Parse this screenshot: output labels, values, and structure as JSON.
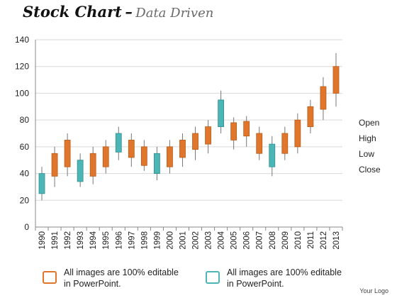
{
  "header": {
    "title": "Stock Chart",
    "dash": "–",
    "subtitle": "Data Driven"
  },
  "chart_data": {
    "type": "candlestick",
    "title": "",
    "xlabel": "",
    "ylabel": "",
    "ylim": [
      0,
      140
    ],
    "yticks": [
      0,
      20,
      40,
      60,
      80,
      100,
      120,
      140
    ],
    "grid": true,
    "categories": [
      "1990",
      "1991",
      "1992",
      "1993",
      "1994",
      "1995",
      "1996",
      "1997",
      "1998",
      "1999",
      "2000",
      "2001",
      "2002",
      "2003",
      "2004",
      "2005",
      "2006",
      "2007",
      "2008",
      "2009",
      "2010",
      "2011",
      "2012",
      "2013"
    ],
    "open": [
      40,
      38,
      45,
      50,
      38,
      45,
      70,
      52,
      46,
      55,
      45,
      52,
      58,
      62,
      95,
      65,
      68,
      55,
      62,
      55,
      60,
      75,
      88,
      100
    ],
    "high": [
      45,
      60,
      70,
      55,
      60,
      65,
      75,
      70,
      65,
      60,
      65,
      70,
      75,
      80,
      102,
      82,
      83,
      75,
      68,
      75,
      85,
      95,
      112,
      130
    ],
    "low": [
      20,
      30,
      38,
      30,
      32,
      40,
      50,
      45,
      42,
      35,
      40,
      45,
      50,
      55,
      70,
      58,
      60,
      50,
      38,
      50,
      55,
      70,
      80,
      90
    ],
    "close": [
      25,
      55,
      65,
      34,
      55,
      60,
      56,
      65,
      60,
      40,
      60,
      65,
      70,
      75,
      75,
      78,
      79,
      70,
      45,
      70,
      80,
      90,
      105,
      120
    ],
    "colors": {
      "up": "#e0762b",
      "down": "#4cb5b5",
      "up_edge": "#b85c1a",
      "down_edge": "#2f8f8f",
      "wick": "#777777",
      "grid": "#d9d9d9"
    }
  },
  "legend_ohlc": [
    "Open",
    "High",
    "Low",
    "Close"
  ],
  "notes": [
    {
      "line1": "All images are 100% editable",
      "line2": "in PowerPoint."
    },
    {
      "line1": "All images are 100% editable",
      "line2": "in PowerPoint."
    }
  ],
  "footer": {
    "logo": "Your Logo"
  }
}
